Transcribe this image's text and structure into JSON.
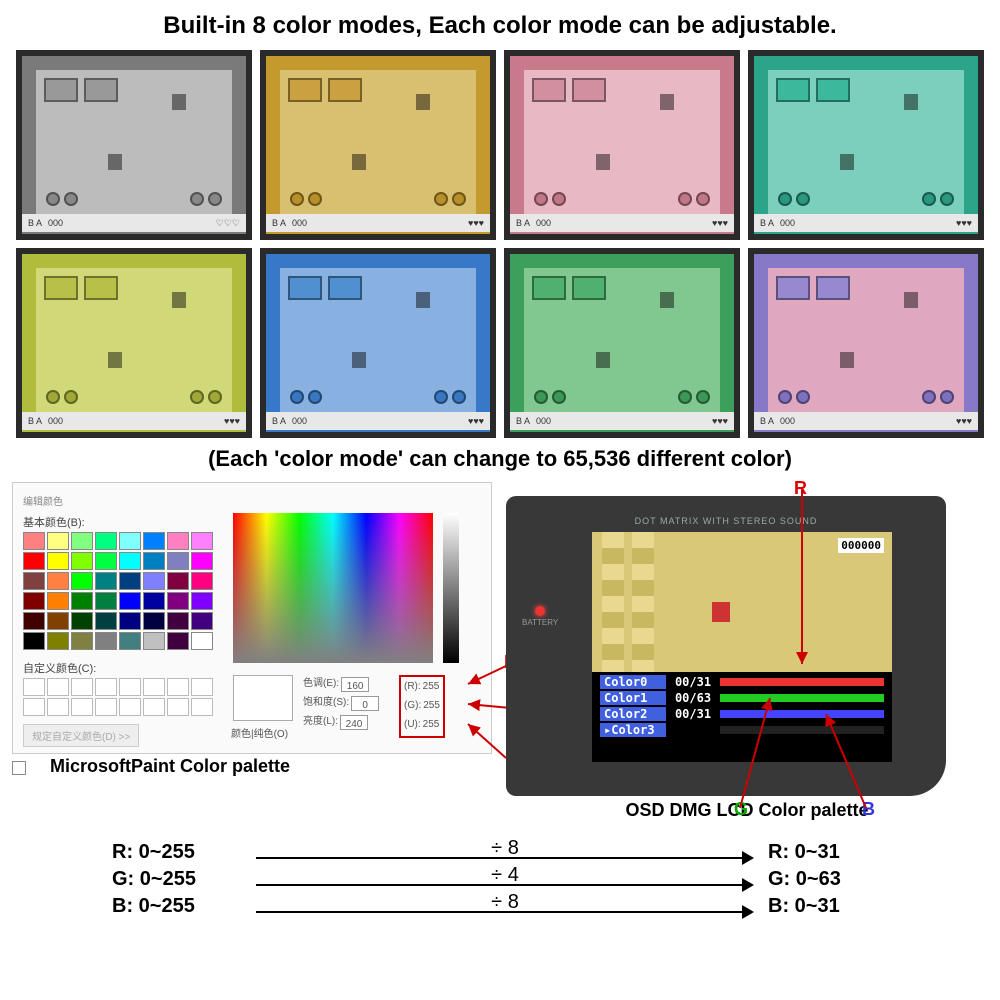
{
  "title": "Built-in 8 color modes, Each color mode can be adjustable.",
  "subtitle": "(Each 'color mode' can change to 65,536 different color)",
  "tiles": [
    {
      "wall": "#7a7a7a",
      "floor": "#bcbcbc",
      "bed": "#999",
      "pot": "#888",
      "hearts": "♡♡♡"
    },
    {
      "wall": "#c49a2e",
      "floor": "#d9c070",
      "bed": "#caa040",
      "pot": "#b8902a",
      "hearts": "♥♥♥"
    },
    {
      "wall": "#c97a8a",
      "floor": "#e8b8c4",
      "bed": "#d090a0",
      "pot": "#c07888",
      "hearts": "♥♥♥"
    },
    {
      "wall": "#2aa58a",
      "floor": "#7ad0bc",
      "bed": "#3cb89c",
      "pot": "#2a9880",
      "hearts": "♥♥♥"
    },
    {
      "wall": "#b0bc3c",
      "floor": "#d0d878",
      "bed": "#b8c048",
      "pot": "#a0a838",
      "hearts": "♥♥♥"
    },
    {
      "wall": "#3878c8",
      "floor": "#88b0e0",
      "bed": "#5090d0",
      "pot": "#3878c0",
      "hearts": "♥♥♥"
    },
    {
      "wall": "#3ca05c",
      "floor": "#80c890",
      "bed": "#50b070",
      "pot": "#3c9858",
      "hearts": "♥♥♥"
    },
    {
      "wall": "#8878c8",
      "floor": "#e0a8c0",
      "bed": "#9888d0",
      "pot": "#8070c0",
      "hearts": "♥♥♥"
    }
  ],
  "hud": {
    "left": "B     A",
    "mid": "000"
  },
  "paint": {
    "window": "编辑颜色",
    "basic_label": "基本颜色(B):",
    "custom_label": "自定义颜色(C):",
    "define": "规定自定义颜色(D) >>",
    "preview_label": "颜色|纯色(O)",
    "hsl": [
      {
        "k": "色调(E):",
        "v": "160"
      },
      {
        "k": "饱和度(S):",
        "v": "0"
      },
      {
        "k": "亮度(L):",
        "v": "240"
      }
    ],
    "rgb": [
      {
        "k": "(R):",
        "v": "255"
      },
      {
        "k": "(G):",
        "v": "255"
      },
      {
        "k": "(U):",
        "v": "255"
      }
    ],
    "swatches": [
      "#ff8080",
      "#ffff80",
      "#80ff80",
      "#00ff80",
      "#80ffff",
      "#0080ff",
      "#ff80c0",
      "#ff80ff",
      "#ff0000",
      "#ffff00",
      "#80ff00",
      "#00ff40",
      "#00ffff",
      "#0080c0",
      "#8080c0",
      "#ff00ff",
      "#804040",
      "#ff8040",
      "#00ff00",
      "#008080",
      "#004080",
      "#8080ff",
      "#800040",
      "#ff0080",
      "#800000",
      "#ff8000",
      "#008000",
      "#008040",
      "#0000ff",
      "#0000a0",
      "#800080",
      "#8000ff",
      "#400000",
      "#804000",
      "#004000",
      "#004040",
      "#000080",
      "#000040",
      "#400040",
      "#400080",
      "#000000",
      "#808000",
      "#808040",
      "#808080",
      "#408080",
      "#c0c0c0",
      "#400040",
      "#ffffff"
    ],
    "caption": "MicrosoftPaint Color palette"
  },
  "annot": {
    "R": "R",
    "G": "G",
    "B": "B"
  },
  "dmg": {
    "header": "DOT MATRIX WITH STEREO SOUND",
    "battery": "BATTERY",
    "score": "000000",
    "lines": [
      {
        "label": "Color0",
        "val": "00/31",
        "bar": "R"
      },
      {
        "label": "Color1",
        "val": "00/63",
        "bar": "G"
      },
      {
        "label": "Color2",
        "val": "00/31",
        "bar": "B"
      },
      {
        "label": "▸Color3",
        "val": "",
        "bar": "K"
      }
    ],
    "caption": "OSD DMG LCD Color palette"
  },
  "conv": [
    {
      "l": "R: 0~255",
      "d": "÷ 8",
      "r": "R: 0~31"
    },
    {
      "l": "G: 0~255",
      "d": "÷ 4",
      "r": "G: 0~63"
    },
    {
      "l": "B: 0~255",
      "d": "÷ 8",
      "r": "B: 0~31"
    }
  ]
}
